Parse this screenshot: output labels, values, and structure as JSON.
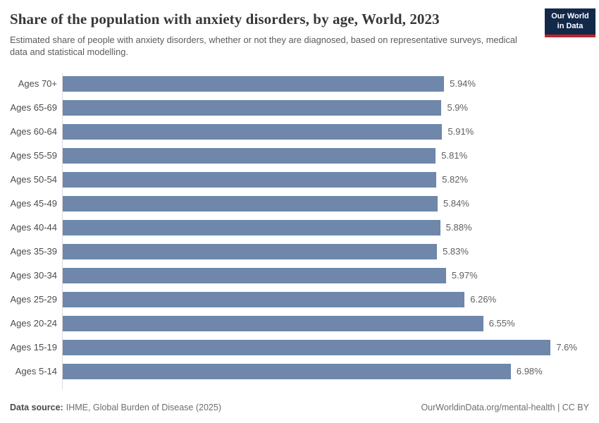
{
  "header": {
    "logo": {
      "line1": "Our World",
      "line2": "in Data"
    }
  },
  "chart_data": {
    "type": "bar",
    "orientation": "horizontal",
    "title": "Share of the population with anxiety disorders, by age, World, 2023",
    "subtitle": "Estimated share of people with anxiety disorders, whether or not they are diagnosed, based on representative surveys, medical data and statistical modelling.",
    "categories": [
      "Ages 70+",
      "Ages 65-69",
      "Ages 60-64",
      "Ages 55-59",
      "Ages 50-54",
      "Ages 45-49",
      "Ages 40-44",
      "Ages 35-39",
      "Ages 30-34",
      "Ages 25-29",
      "Ages 20-24",
      "Ages 15-19",
      "Ages 5-14"
    ],
    "values": [
      5.94,
      5.9,
      5.91,
      5.81,
      5.82,
      5.84,
      5.88,
      5.83,
      5.97,
      6.26,
      6.55,
      7.6,
      6.98
    ],
    "value_labels": [
      "5.94%",
      "5.9%",
      "5.91%",
      "5.81%",
      "5.82%",
      "5.84%",
      "5.88%",
      "5.83%",
      "5.97%",
      "6.26%",
      "6.55%",
      "7.6%",
      "6.98%"
    ],
    "xlabel": "",
    "ylabel": "",
    "xlim": [
      0,
      8.2
    ],
    "grid": false,
    "legend": false,
    "bar_color": "#6e87aa"
  },
  "footer": {
    "source_label": "Data source:",
    "source_value": "IHME, Global Burden of Disease (2025)",
    "credit": "OurWorldinData.org/mental-health | CC BY"
  }
}
